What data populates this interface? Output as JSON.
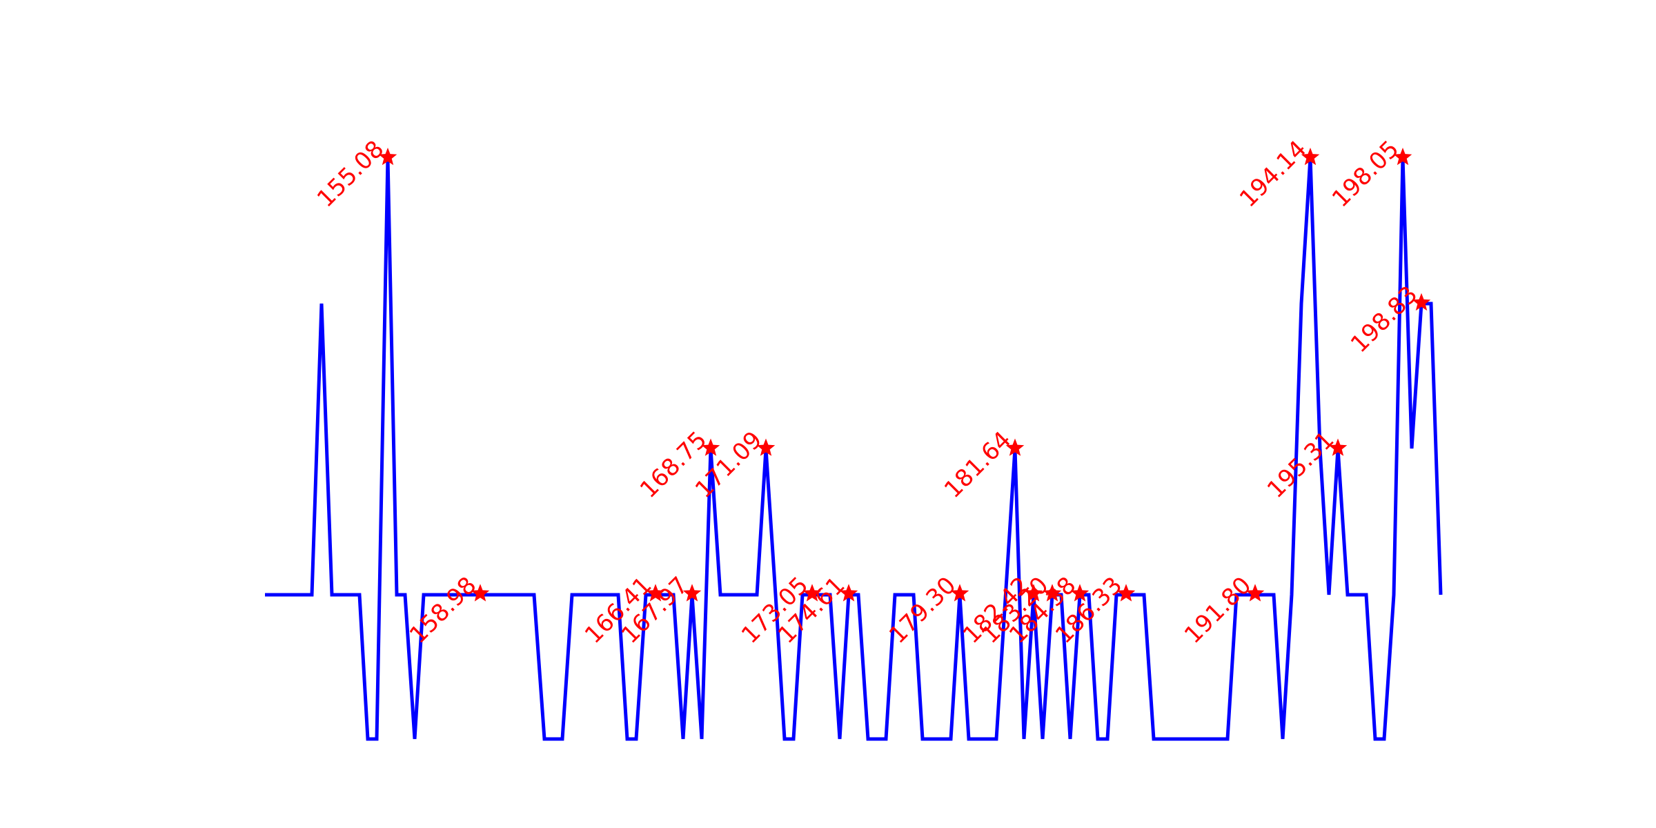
{
  "chart_data": {
    "type": "line",
    "title": "",
    "xlabel": "",
    "ylabel": "",
    "axes_visible": false,
    "grid": false,
    "xlim": [
      150,
      214
    ],
    "ylim": [
      -1,
      3
    ],
    "series": [
      {
        "color": "#0000ff",
        "points": [
          [
            150,
            0
          ],
          [
            151.8,
            0
          ],
          [
            152.2,
            2
          ],
          [
            152.6,
            0
          ],
          [
            153.6,
            0
          ],
          [
            154.0,
            -1
          ],
          [
            154.4,
            -1
          ],
          [
            154.7,
            3
          ],
          [
            155.08,
            3
          ],
          [
            155.4,
            0
          ],
          [
            155.8,
            0
          ],
          [
            156.2,
            -1
          ],
          [
            156.5,
            0
          ],
          [
            158.98,
            0
          ],
          [
            160.5,
            0
          ],
          [
            160.9,
            -1
          ],
          [
            161.6,
            -1
          ],
          [
            161.9,
            0
          ],
          [
            163.8,
            0
          ],
          [
            164.2,
            -1
          ],
          [
            164.5,
            -1
          ],
          [
            164.8,
            0
          ],
          [
            166.41,
            0
          ],
          [
            165.9,
            0
          ],
          [
            166.2,
            -1
          ],
          [
            166.41,
            0
          ],
          [
            166.7,
            -1
          ],
          [
            167.1,
            1
          ],
          [
            167.4,
            0
          ],
          [
            168.8,
            0
          ],
          [
            169.2,
            1
          ],
          [
            169.5,
            0
          ],
          [
            170.0,
            -1
          ],
          [
            170.4,
            -1
          ],
          [
            170.6,
            0
          ],
          [
            171.09,
            0
          ],
          [
            171.7,
            0
          ],
          [
            172.1,
            -1
          ],
          [
            172.4,
            0
          ],
          [
            172.8,
            0
          ],
          [
            173.2,
            -1
          ],
          [
            173.9,
            -1
          ],
          [
            174.2,
            0
          ],
          [
            174.61,
            0
          ],
          [
            175.0,
            0
          ],
          [
            175.4,
            -1
          ],
          [
            176.4,
            -1
          ],
          [
            176.81,
            0
          ],
          [
            177.2,
            -1
          ],
          [
            178.3,
            -1
          ],
          [
            178.7,
            1
          ],
          [
            179.1,
            -1
          ],
          [
            179.4,
            0
          ],
          [
            179.8,
            0
          ],
          [
            180.2,
            -1
          ],
          [
            180.4,
            0
          ],
          [
            181.64,
            0
          ],
          [
            181.2,
            -1
          ],
          [
            181.5,
            0
          ],
          [
            182.2,
            0
          ],
          [
            182.5,
            -1
          ],
          [
            182.8,
            -1
          ],
          [
            183.0,
            0
          ],
          [
            184.38,
            0
          ],
          [
            183.9,
            0
          ],
          [
            184.4,
            -1
          ],
          [
            186.33,
            -1
          ],
          [
            186.7,
            0
          ],
          [
            187.3,
            0
          ],
          [
            187.6,
            -1
          ],
          [
            188.0,
            0
          ],
          [
            189.4,
            0
          ],
          [
            189.7,
            -1
          ],
          [
            190.1,
            2
          ],
          [
            190.5,
            3
          ],
          [
            191.0,
            1
          ],
          [
            191.4,
            0
          ],
          [
            191.8,
            1
          ],
          [
            192.2,
            0
          ],
          [
            193.0,
            0
          ],
          [
            193.4,
            -1
          ],
          [
            193.8,
            -1
          ],
          [
            194.14,
            0
          ],
          [
            194.5,
            3
          ],
          [
            194.8,
            1
          ],
          [
            195.31,
            2
          ],
          [
            195.6,
            2
          ],
          [
            196.0,
            0
          ]
        ]
      }
    ],
    "markers": [
      {
        "label": "155.08",
        "x": 155.08,
        "y": 3
      },
      {
        "label": "158.98",
        "x": 158.98,
        "y": 0
      },
      {
        "label": "166.41",
        "x": 166.41,
        "y": 0
      },
      {
        "label": "167.97",
        "x": 167.97,
        "y": 0
      },
      {
        "label": "168.75",
        "x": 168.75,
        "y": 1
      },
      {
        "label": "171.09",
        "x": 171.09,
        "y": 1
      },
      {
        "label": "173.05",
        "x": 173.05,
        "y": 0
      },
      {
        "label": "174.61",
        "x": 174.61,
        "y": 0
      },
      {
        "label": "179.30",
        "x": 179.3,
        "y": 0
      },
      {
        "label": "181.64",
        "x": 181.64,
        "y": 1
      },
      {
        "label": "182.42",
        "x": 182.42,
        "y": 0
      },
      {
        "label": "183.20",
        "x": 183.2,
        "y": 0
      },
      {
        "label": "184.38",
        "x": 184.38,
        "y": 0
      },
      {
        "label": "186.33",
        "x": 186.33,
        "y": 0
      },
      {
        "label": "191.80",
        "x": 191.8,
        "y": 0
      },
      {
        "label": "194.14",
        "x": 194.14,
        "y": 3
      },
      {
        "label": "195.31",
        "x": 195.31,
        "y": 1
      },
      {
        "label": "198.05",
        "x": 198.05,
        "y": 3
      },
      {
        "label": "198.83",
        "x": 198.83,
        "y": 2
      }
    ],
    "marker_color": "#ff0000"
  }
}
